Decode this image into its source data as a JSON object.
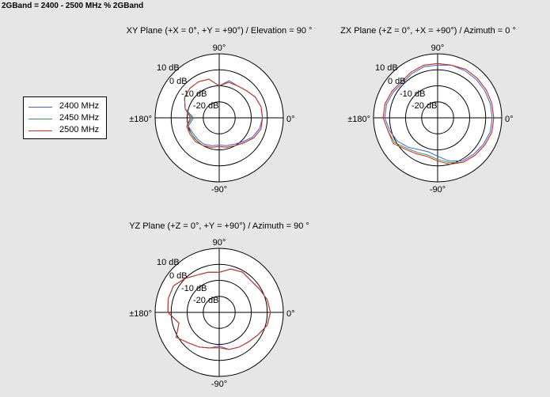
{
  "page_title": "2GBand = 2400 - 2500 MHz % 2GBand",
  "colors": {
    "2400": "#4a5ec4",
    "2450": "#2c9a4a",
    "2500": "#d42a2a"
  },
  "legend": {
    "items": [
      {
        "label": "2400 MHz",
        "color": "#4a5ec4"
      },
      {
        "label": "2450 MHz",
        "color": "#2c9a4a"
      },
      {
        "label": "2500 MHz",
        "color": "#d42a2a"
      }
    ]
  },
  "chart_data": [
    {
      "type": "polar",
      "title": "XY Plane (+X = 0°, +Y = +90°) / Elevation = 90 °",
      "angle_labels": {
        "a90": "90°",
        "a0": "0°",
        "a180": "±180°",
        "am90": "-90°"
      },
      "radial_labels": [
        "10 dB",
        "0 dB",
        "-10 dB",
        "-20 dB"
      ],
      "rlim": [
        -30,
        10
      ],
      "rings_db": [
        -20,
        -10,
        0,
        10
      ],
      "grid": true,
      "angles_deg": [
        0,
        15,
        30,
        45,
        60,
        75,
        90,
        105,
        120,
        135,
        150,
        165,
        180,
        195,
        210,
        225,
        240,
        255,
        270,
        285,
        300,
        315,
        330,
        345
      ],
      "series": [
        {
          "name": "2400 MHz",
          "values": [
            -3,
            -3,
            -4,
            -6,
            -7,
            -6,
            -10,
            -5,
            -4,
            -4,
            -5,
            -8,
            -14,
            -10,
            -11,
            -11,
            -11,
            -12,
            -13,
            -12,
            -11,
            -9,
            -6,
            -4
          ]
        },
        {
          "name": "2450 MHz",
          "values": [
            -3,
            -3,
            -4,
            -6,
            -7,
            -7,
            -10,
            -5,
            -4,
            -4,
            -5,
            -8,
            -13,
            -9,
            -10,
            -10,
            -10,
            -11,
            -12,
            -11,
            -10,
            -8,
            -5,
            -3
          ]
        },
        {
          "name": "2500 MHz",
          "values": [
            -3,
            -3,
            -4,
            -6,
            -7,
            -7,
            -10,
            -5,
            -4,
            -4,
            -5,
            -8,
            -12,
            -9,
            -9,
            -9,
            -10,
            -11,
            -12,
            -11,
            -10,
            -8,
            -5,
            -3
          ]
        }
      ]
    },
    {
      "type": "polar",
      "title": "ZX Plane (+Z = 0°, +X = +90°) / Azimuth = 0 °",
      "angle_labels": {
        "a90": "90°",
        "a0": "0°",
        "a180": "±180°",
        "am90": "-90°"
      },
      "radial_labels": [
        "10 dB",
        "0 dB",
        "-10 dB",
        "-20 dB"
      ],
      "rlim": [
        -30,
        10
      ],
      "rings_db": [
        -20,
        -10,
        0,
        10
      ],
      "grid": true,
      "angles_deg": [
        0,
        15,
        30,
        45,
        60,
        75,
        90,
        105,
        120,
        135,
        150,
        165,
        180,
        195,
        210,
        225,
        240,
        255,
        270,
        285,
        300,
        315,
        330,
        345
      ],
      "series": [
        {
          "name": "2400 MHz",
          "values": [
            4,
            4,
            4,
            4,
            4,
            4,
            3,
            3,
            2,
            1,
            2,
            3,
            3,
            1,
            -1,
            -4,
            -7,
            -8,
            -6,
            -2,
            1,
            2,
            3,
            4
          ]
        },
        {
          "name": "2450 MHz",
          "values": [
            5,
            5,
            5,
            5,
            5,
            4,
            4,
            4,
            3,
            2,
            3,
            4,
            4,
            2,
            1,
            -3,
            -5,
            -6,
            -4,
            -1,
            2,
            3,
            4,
            5
          ]
        },
        {
          "name": "2500 MHz",
          "values": [
            5,
            5,
            5,
            5,
            5,
            4,
            4,
            4,
            3,
            2,
            3,
            4,
            4,
            2,
            2,
            -2,
            -4,
            -5,
            -3,
            0,
            2,
            3,
            4,
            5
          ]
        }
      ]
    },
    {
      "type": "polar",
      "title": "YZ Plane (+Z = 0°, +Y = +90°) / Azimuth = 90 °",
      "angle_labels": {
        "a90": "90°",
        "a0": "0°",
        "a180": "±180°",
        "am90": "-90°"
      },
      "radial_labels": [
        "10 dB",
        "0 dB",
        "-10 dB",
        "-20 dB"
      ],
      "rlim": [
        -30,
        10
      ],
      "rings_db": [
        -20,
        -10,
        0,
        10
      ],
      "grid": true,
      "angles_deg": [
        0,
        15,
        30,
        45,
        60,
        75,
        90,
        105,
        120,
        135,
        150,
        165,
        180,
        195,
        210,
        225,
        240,
        255,
        270,
        285,
        300,
        315,
        330,
        345
      ],
      "series": [
        {
          "name": "2400 MHz",
          "values": [
            2,
            1,
            -1,
            -2,
            -1,
            -2,
            -5,
            -4,
            -3,
            0,
            3,
            3,
            2,
            -4,
            1,
            -3,
            -5,
            -7,
            -9,
            -6,
            -5,
            -4,
            -2,
            1
          ]
        },
        {
          "name": "2450 MHz",
          "values": [
            2,
            1,
            -1,
            -2,
            -1,
            -2,
            -5,
            -4,
            -3,
            0,
            3,
            3,
            2,
            -4,
            1,
            -3,
            -5,
            -7,
            -8,
            -6,
            -5,
            -4,
            -2,
            1
          ]
        },
        {
          "name": "2500 MHz",
          "values": [
            2,
            1,
            -1,
            -2,
            -1,
            -2,
            -5,
            -4,
            -3,
            0,
            3,
            3,
            2,
            -4,
            1,
            -3,
            -5,
            -7,
            -8,
            -6,
            -5,
            -4,
            -2,
            1
          ]
        }
      ]
    }
  ]
}
